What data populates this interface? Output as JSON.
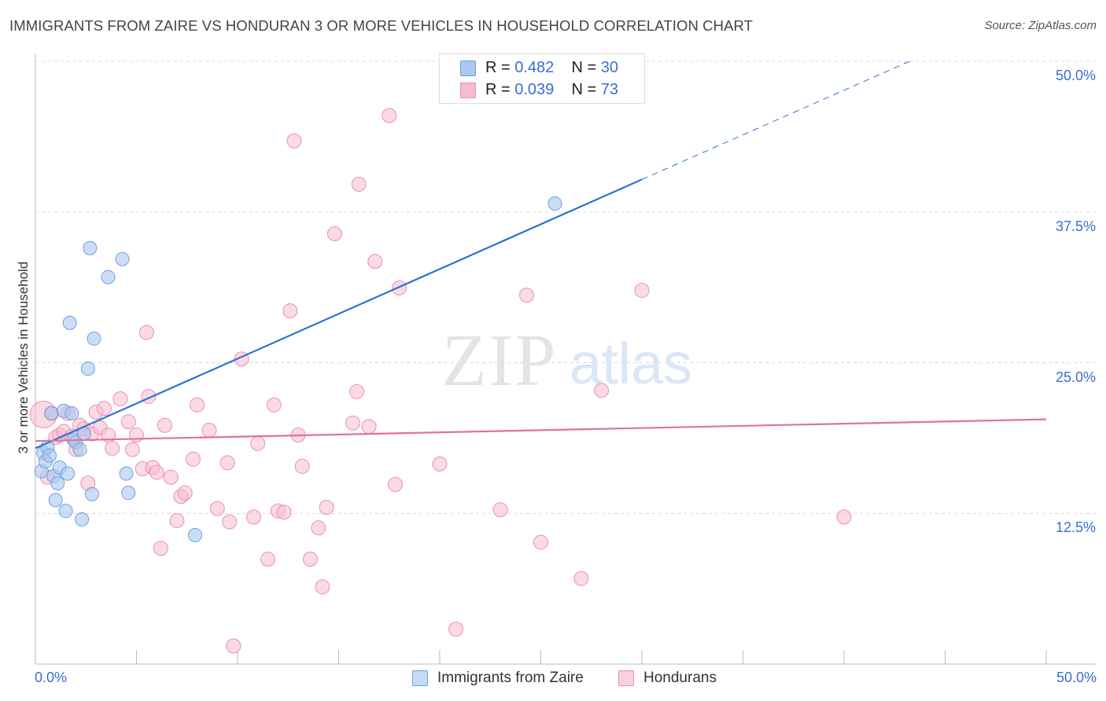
{
  "title": "IMMIGRANTS FROM ZAIRE VS HONDURAN 3 OR MORE VEHICLES IN HOUSEHOLD CORRELATION CHART",
  "source": "Source: ZipAtlas.com",
  "watermark": {
    "zip": "ZIP",
    "atlas": "atlas"
  },
  "colors": {
    "blue_fill": "#aac8f0",
    "blue_stroke": "#6f9fe0",
    "blue_line": "#2e74d0",
    "pink_fill": "#f6bcd0",
    "pink_stroke": "#ec8fb0",
    "pink_line": "#e0729c",
    "axis_text": "#3a6fd0",
    "grid": "#d8d8d8"
  },
  "legend": [
    {
      "r_label": "R =",
      "r_value": "0.482",
      "n_label": "N =",
      "n_value": "30"
    },
    {
      "r_label": "R =",
      "r_value": "0.039",
      "n_label": "N =",
      "n_value": "73"
    }
  ],
  "chart_data": {
    "type": "scatter",
    "title": "IMMIGRANTS FROM ZAIRE VS HONDURAN 3 OR MORE VEHICLES IN HOUSEHOLD CORRELATION CHART",
    "xlabel": "",
    "ylabel": "3 or more Vehicles in Household",
    "xlim": [
      0,
      50
    ],
    "ylim": [
      0,
      50
    ],
    "x_tick_labels": [
      "0.0%",
      "50.0%"
    ],
    "y_ticks": [
      12.5,
      25.0,
      37.5,
      50.0
    ],
    "y_tick_labels": [
      "12.5%",
      "25.0%",
      "37.5%",
      "50.0%"
    ],
    "grid": true,
    "legend_position": "top-center",
    "series": [
      {
        "name": "Immigrants from Zaire",
        "color": "#aac8f0",
        "r": 0.482,
        "n": 30,
        "trend": {
          "x0": 0,
          "y0": 17.9,
          "x1": 30,
          "y1": 40.2,
          "dash_to_x": 50,
          "dash_to_y": 55.0
        },
        "points": [
          [
            0.3,
            16.0
          ],
          [
            0.4,
            17.5
          ],
          [
            0.5,
            16.8
          ],
          [
            0.6,
            18.0
          ],
          [
            0.7,
            17.3
          ],
          [
            0.8,
            20.8
          ],
          [
            0.9,
            15.6
          ],
          [
            1.0,
            13.6
          ],
          [
            1.1,
            15.0
          ],
          [
            1.2,
            16.3
          ],
          [
            1.4,
            21.0
          ],
          [
            1.5,
            12.7
          ],
          [
            1.6,
            15.8
          ],
          [
            1.7,
            28.3
          ],
          [
            1.8,
            20.8
          ],
          [
            1.9,
            18.6
          ],
          [
            2.0,
            18.4
          ],
          [
            2.2,
            17.8
          ],
          [
            2.3,
            12.0
          ],
          [
            2.4,
            19.1
          ],
          [
            2.6,
            24.5
          ],
          [
            2.8,
            14.1
          ],
          [
            2.9,
            27.0
          ],
          [
            2.7,
            34.5
          ],
          [
            3.6,
            32.1
          ],
          [
            4.3,
            33.6
          ],
          [
            4.5,
            15.8
          ],
          [
            4.6,
            14.2
          ],
          [
            7.9,
            10.7
          ],
          [
            25.7,
            38.2
          ]
        ]
      },
      {
        "name": "Hondurans",
        "color": "#f6bcd0",
        "r": 0.039,
        "n": 73,
        "trend": {
          "x0": 0,
          "y0": 18.5,
          "x1": 50,
          "y1": 20.3
        },
        "points": [
          [
            0.4,
            20.7
          ],
          [
            0.6,
            15.5
          ],
          [
            0.8,
            20.8
          ],
          [
            1.0,
            18.8
          ],
          [
            1.2,
            19.0
          ],
          [
            1.4,
            19.3
          ],
          [
            1.6,
            20.8
          ],
          [
            1.8,
            18.9
          ],
          [
            2.0,
            17.8
          ],
          [
            2.2,
            19.8
          ],
          [
            2.4,
            19.5
          ],
          [
            2.6,
            15.0
          ],
          [
            2.8,
            19.1
          ],
          [
            3.0,
            20.9
          ],
          [
            3.2,
            19.6
          ],
          [
            3.4,
            21.2
          ],
          [
            3.6,
            19.0
          ],
          [
            3.8,
            17.9
          ],
          [
            4.2,
            22.0
          ],
          [
            4.6,
            20.1
          ],
          [
            4.8,
            17.8
          ],
          [
            5.0,
            19.0
          ],
          [
            5.3,
            16.2
          ],
          [
            5.5,
            27.5
          ],
          [
            5.6,
            22.2
          ],
          [
            5.8,
            16.3
          ],
          [
            6.0,
            15.9
          ],
          [
            6.2,
            9.6
          ],
          [
            6.4,
            19.8
          ],
          [
            6.7,
            15.5
          ],
          [
            7.0,
            11.9
          ],
          [
            7.2,
            13.9
          ],
          [
            7.4,
            14.2
          ],
          [
            7.8,
            17.0
          ],
          [
            8.0,
            21.5
          ],
          [
            8.6,
            19.4
          ],
          [
            9.0,
            12.9
          ],
          [
            9.5,
            16.7
          ],
          [
            9.6,
            11.8
          ],
          [
            9.8,
            1.5
          ],
          [
            10.2,
            25.3
          ],
          [
            10.8,
            12.2
          ],
          [
            11.0,
            18.3
          ],
          [
            11.5,
            8.7
          ],
          [
            11.8,
            21.5
          ],
          [
            12.0,
            12.7
          ],
          [
            12.3,
            12.6
          ],
          [
            12.6,
            29.3
          ],
          [
            12.8,
            43.4
          ],
          [
            13.0,
            19.0
          ],
          [
            13.2,
            16.4
          ],
          [
            13.6,
            8.7
          ],
          [
            14.0,
            11.3
          ],
          [
            14.2,
            6.4
          ],
          [
            14.4,
            13.0
          ],
          [
            14.8,
            35.7
          ],
          [
            15.7,
            20.0
          ],
          [
            15.9,
            22.6
          ],
          [
            16.0,
            39.8
          ],
          [
            16.5,
            19.7
          ],
          [
            16.8,
            33.4
          ],
          [
            17.5,
            45.5
          ],
          [
            17.8,
            14.9
          ],
          [
            18.0,
            31.2
          ],
          [
            20.0,
            16.6
          ],
          [
            20.8,
            2.9
          ],
          [
            23.0,
            12.8
          ],
          [
            24.3,
            30.6
          ],
          [
            25.0,
            10.1
          ],
          [
            27.0,
            7.1
          ],
          [
            28.0,
            22.7
          ],
          [
            30.0,
            31.0
          ],
          [
            40.0,
            12.2
          ]
        ]
      }
    ],
    "bottom_legend": [
      "Immigrants from Zaire",
      "Hondurans"
    ]
  }
}
